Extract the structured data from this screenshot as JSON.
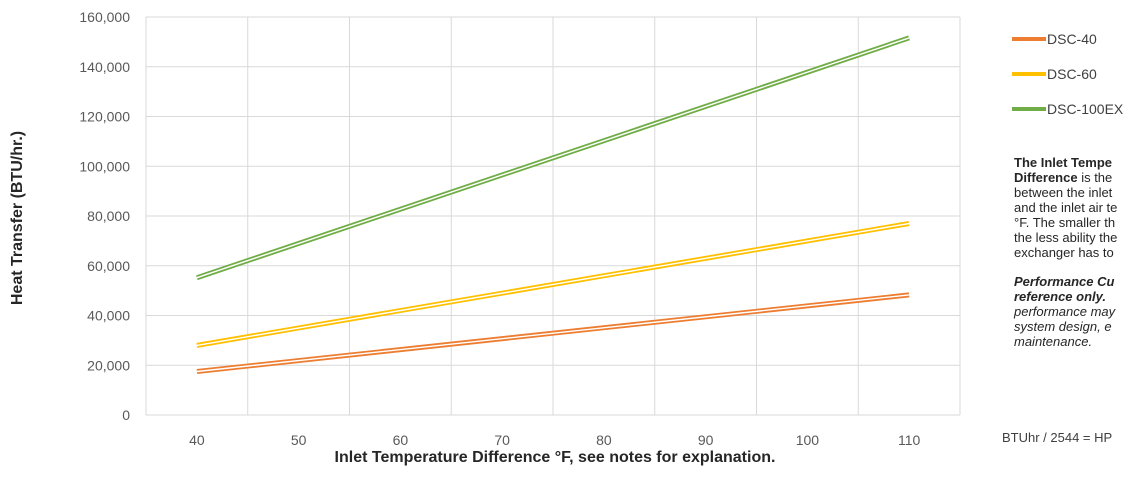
{
  "chart_data": {
    "type": "line",
    "x": [
      40,
      110
    ],
    "xticks": [
      40,
      50,
      60,
      70,
      80,
      90,
      100,
      110
    ],
    "yticks": [
      0,
      20000,
      40000,
      60000,
      80000,
      100000,
      120000,
      140000,
      160000
    ],
    "ytick_labels": [
      "0",
      "20,000",
      "40,000",
      "60,000",
      "80,000",
      "100,000",
      "120,000",
      "140,000",
      "160,000"
    ],
    "xlim": [
      35,
      115
    ],
    "ylim": [
      0,
      160000
    ],
    "xlabel": "Inlet Temperature Difference °F, see notes for explanation.",
    "ylabel": "Heat Transfer (BTU/hr.)",
    "grid": true,
    "legend_position": "right",
    "series": [
      {
        "name": "DSC-40",
        "color": "#ed7d31",
        "values": [
          17500,
          48300
        ]
      },
      {
        "name": "DSC-60",
        "color": "#ffc000",
        "values": [
          28000,
          77000
        ]
      },
      {
        "name": "DSC-100EX",
        "color": "#70ad47",
        "values": [
          55200,
          151600
        ]
      }
    ]
  },
  "notes": {
    "p1_bold": "The Inlet Tempe",
    "p1_bold2": "Difference",
    "p1_text": " is the",
    "p1_lines": [
      "between the inlet",
      "and the inlet air te",
      "°F. The smaller th",
      "the less ability the",
      "exchanger has to"
    ],
    "p2_lines": [
      "Performance Cu",
      "reference only. ",
      "performance may",
      "system design, e",
      "maintenance."
    ],
    "footnote": "BTUhr / 2544 = HP"
  }
}
